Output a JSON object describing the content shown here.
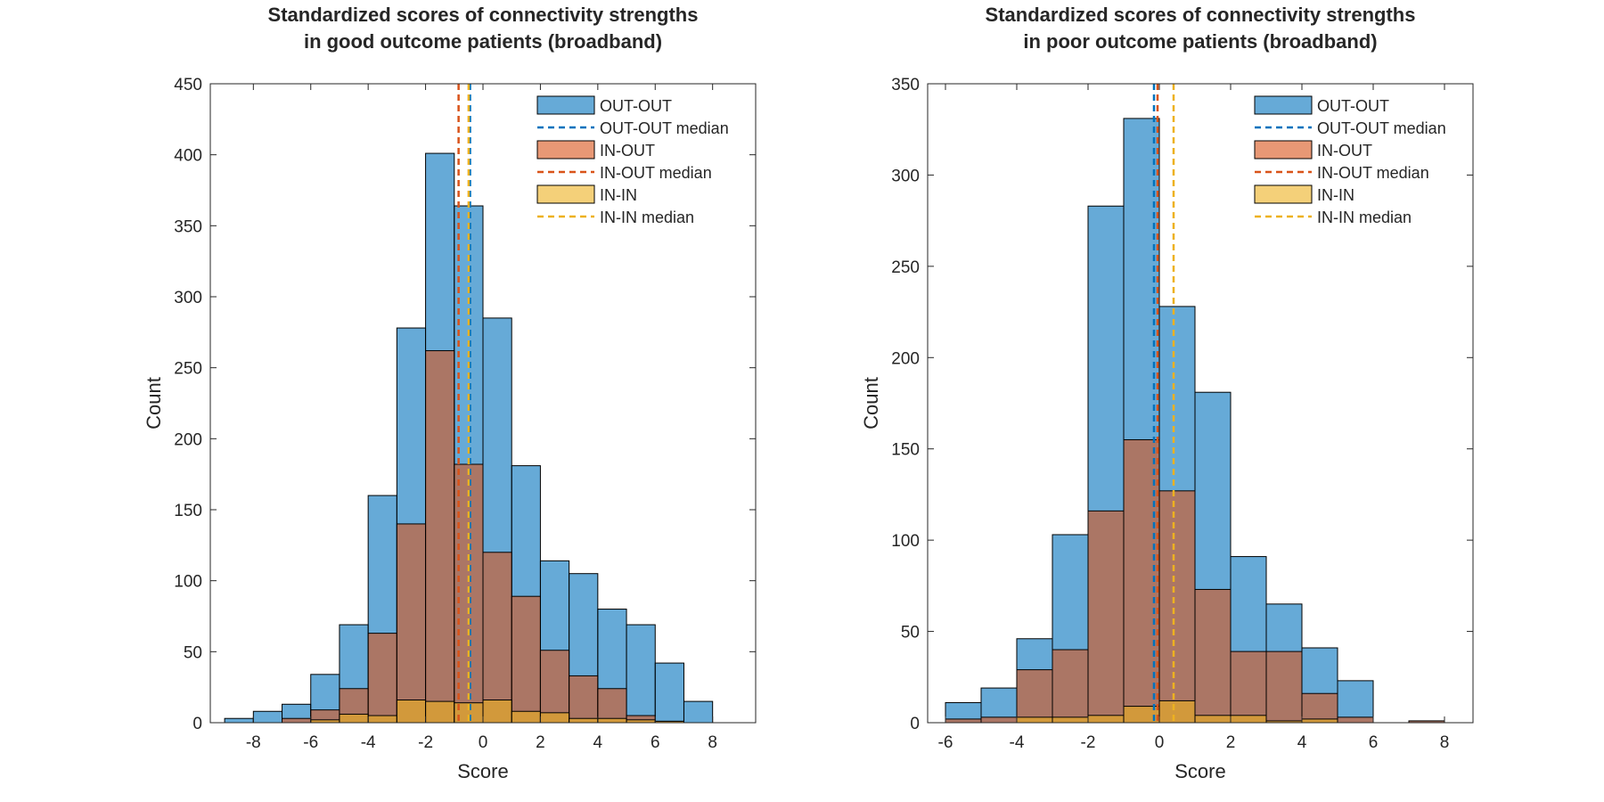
{
  "chart_data": [
    {
      "type": "bar",
      "title_lines": [
        "Standardized scores of connectivity strengths",
        "in good outcome patients (broadband)"
      ],
      "xlabel": "Score",
      "ylabel": "Count",
      "xlim": [
        -9.5,
        9.5
      ],
      "ylim": [
        0,
        450
      ],
      "xticks": [
        -8,
        -6,
        -4,
        -2,
        0,
        2,
        4,
        6,
        8
      ],
      "yticks": [
        0,
        50,
        100,
        150,
        200,
        250,
        300,
        350,
        400,
        450
      ],
      "bin_edges": [
        -9,
        -8,
        -7,
        -6,
        -5,
        -4,
        -3,
        -2,
        -1,
        0,
        1,
        2,
        3,
        4,
        5,
        6,
        7,
        8
      ],
      "series": [
        {
          "name": "OUT-OUT",
          "color": "#0072BD",
          "values": [
            3,
            8,
            13,
            34,
            69,
            160,
            278,
            401,
            364,
            285,
            181,
            114,
            105,
            80,
            69,
            42,
            15
          ]
        },
        {
          "name": "IN-OUT",
          "color": "#D95319",
          "values": [
            0,
            0,
            3,
            9,
            24,
            63,
            140,
            262,
            182,
            120,
            89,
            51,
            33,
            24,
            5,
            1,
            0
          ]
        },
        {
          "name": "IN-IN",
          "color": "#EDB120",
          "values": [
            0,
            0,
            0,
            2,
            6,
            5,
            16,
            15,
            14,
            16,
            8,
            7,
            3,
            3,
            2,
            1,
            0
          ]
        }
      ],
      "medians": [
        {
          "name": "OUT-OUT median",
          "color": "#0072BD",
          "x": -0.45
        },
        {
          "name": "IN-OUT median",
          "color": "#D95319",
          "x": -0.85
        },
        {
          "name": "IN-IN median",
          "color": "#EDB120",
          "x": -0.5
        }
      ],
      "legend": [
        "OUT-OUT",
        "OUT-OUT median",
        "IN-OUT",
        "IN-OUT median",
        "IN-IN",
        "IN-IN median"
      ],
      "legend_position": "top-right"
    },
    {
      "type": "bar",
      "title_lines": [
        "Standardized scores of connectivity strengths",
        "in poor outcome patients (broadband)"
      ],
      "xlabel": "Score",
      "ylabel": "Count",
      "xlim": [
        -6.5,
        8.8
      ],
      "ylim": [
        0,
        350
      ],
      "xticks": [
        -6,
        -4,
        -2,
        0,
        2,
        4,
        6,
        8
      ],
      "yticks": [
        0,
        50,
        100,
        150,
        200,
        250,
        300,
        350
      ],
      "bin_edges": [
        -6,
        -5,
        -4,
        -3,
        -2,
        -1,
        0,
        1,
        2,
        3,
        4,
        5,
        6,
        7,
        8
      ],
      "series": [
        {
          "name": "OUT-OUT",
          "color": "#0072BD",
          "values": [
            11,
            19,
            46,
            103,
            283,
            331,
            228,
            181,
            91,
            65,
            41,
            23,
            0,
            1
          ]
        },
        {
          "name": "IN-OUT",
          "color": "#D95319",
          "values": [
            2,
            3,
            29,
            40,
            116,
            155,
            127,
            73,
            39,
            39,
            16,
            3,
            0,
            1
          ]
        },
        {
          "name": "IN-IN",
          "color": "#EDB120",
          "values": [
            0,
            0,
            3,
            3,
            4,
            9,
            12,
            4,
            4,
            1,
            2,
            0,
            0,
            0
          ]
        }
      ],
      "medians": [
        {
          "name": "OUT-OUT median",
          "color": "#0072BD",
          "x": -0.15
        },
        {
          "name": "IN-OUT median",
          "color": "#D95319",
          "x": -0.05
        },
        {
          "name": "IN-IN median",
          "color": "#EDB120",
          "x": 0.4
        }
      ],
      "legend": [
        "OUT-OUT",
        "OUT-OUT median",
        "IN-OUT",
        "IN-OUT median",
        "IN-IN",
        "IN-IN median"
      ],
      "legend_position": "top-right"
    }
  ]
}
